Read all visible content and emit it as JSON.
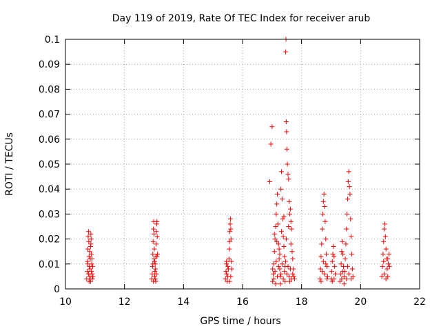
{
  "chart_data": {
    "type": "scatter",
    "title": "Day 119 of 2019, Rate Of TEC Index for receiver arub",
    "xlabel": "GPS time / hours",
    "ylabel": "ROTI / TECUs",
    "xlim": [
      10,
      22
    ],
    "ylim": [
      0,
      0.1
    ],
    "xticks": [
      10,
      12,
      14,
      16,
      18,
      20,
      22
    ],
    "xtick_labels": [
      "10",
      "12",
      "14",
      "16",
      "18",
      "20",
      "22"
    ],
    "yticks": [
      0,
      0.01,
      0.02,
      0.03,
      0.04,
      0.05,
      0.06,
      0.07,
      0.08,
      0.09,
      0.1
    ],
    "ytick_labels": [
      "0",
      "0.01",
      "0.02",
      "0.03",
      "0.04",
      "0.05",
      "0.06",
      "0.07",
      "0.08",
      "0.09",
      "0.1"
    ],
    "grid": true,
    "marker": "+",
    "color": "#ff0000",
    "series": [
      {
        "points": [
          [
            10.72,
            0.004
          ],
          [
            10.74,
            0.007
          ],
          [
            10.75,
            0.011
          ],
          [
            10.76,
            0.016
          ],
          [
            10.77,
            0.021
          ],
          [
            10.78,
            0.023
          ],
          [
            10.79,
            0.019
          ],
          [
            10.8,
            0.013
          ],
          [
            10.81,
            0.009
          ],
          [
            10.82,
            0.005
          ],
          [
            10.83,
            0.008
          ],
          [
            10.84,
            0.012
          ],
          [
            10.85,
            0.017
          ],
          [
            10.86,
            0.022
          ],
          [
            10.87,
            0.02
          ],
          [
            10.88,
            0.014
          ],
          [
            10.89,
            0.01
          ],
          [
            10.9,
            0.006
          ],
          [
            10.91,
            0.004
          ],
          [
            10.92,
            0.009
          ],
          [
            10.8,
            0.003
          ],
          [
            10.84,
            0.004
          ],
          [
            10.88,
            0.007
          ],
          [
            10.76,
            0.01
          ],
          [
            10.82,
            0.015
          ],
          [
            10.86,
            0.018
          ],
          [
            10.9,
            0.012
          ],
          [
            10.78,
            0.006
          ],
          [
            10.85,
            0.003
          ],
          [
            10.93,
            0.005
          ],
          [
            12.92,
            0.004
          ],
          [
            12.94,
            0.006
          ],
          [
            12.95,
            0.009
          ],
          [
            12.96,
            0.014
          ],
          [
            12.97,
            0.019
          ],
          [
            12.98,
            0.024
          ],
          [
            12.99,
            0.027
          ],
          [
            13.0,
            0.022
          ],
          [
            13.01,
            0.016
          ],
          [
            13.02,
            0.011
          ],
          [
            13.03,
            0.007
          ],
          [
            13.04,
            0.004
          ],
          [
            13.05,
            0.008
          ],
          [
            13.06,
            0.013
          ],
          [
            13.07,
            0.018
          ],
          [
            13.08,
            0.023
          ],
          [
            13.09,
            0.026
          ],
          [
            13.1,
            0.027
          ],
          [
            13.11,
            0.021
          ],
          [
            13.12,
            0.014
          ],
          [
            13.1,
            0.013
          ],
          [
            12.98,
            0.003
          ],
          [
            13.02,
            0.005
          ],
          [
            13.06,
            0.003
          ],
          [
            13.08,
            0.006
          ],
          [
            12.96,
            0.01
          ],
          [
            13.04,
            0.01
          ],
          [
            13.0,
            0.012
          ],
          [
            15.42,
            0.004
          ],
          [
            15.44,
            0.007
          ],
          [
            15.45,
            0.01
          ],
          [
            15.46,
            0.006
          ],
          [
            15.48,
            0.003
          ],
          [
            15.5,
            0.005
          ],
          [
            15.52,
            0.008
          ],
          [
            15.54,
            0.012
          ],
          [
            15.55,
            0.016
          ],
          [
            15.56,
            0.019
          ],
          [
            15.57,
            0.023
          ],
          [
            15.58,
            0.026
          ],
          [
            15.59,
            0.028
          ],
          [
            15.6,
            0.024
          ],
          [
            15.61,
            0.02
          ],
          [
            15.62,
            0.011
          ],
          [
            15.63,
            0.008
          ],
          [
            15.6,
            0.005
          ],
          [
            15.56,
            0.003
          ],
          [
            15.5,
            0.009
          ],
          [
            15.46,
            0.011
          ],
          [
            16.92,
            0.043
          ],
          [
            16.96,
            0.058
          ],
          [
            17.0,
            0.065
          ],
          [
            17.02,
            0.003
          ],
          [
            17.04,
            0.006
          ],
          [
            17.06,
            0.01
          ],
          [
            17.08,
            0.015
          ],
          [
            17.1,
            0.02
          ],
          [
            17.12,
            0.025
          ],
          [
            17.14,
            0.03
          ],
          [
            17.16,
            0.034
          ],
          [
            17.18,
            0.038
          ],
          [
            17.2,
            0.026
          ],
          [
            17.22,
            0.018
          ],
          [
            17.24,
            0.012
          ],
          [
            17.26,
            0.008
          ],
          [
            17.28,
            0.005
          ],
          [
            17.3,
            0.04
          ],
          [
            17.32,
            0.047
          ],
          [
            17.34,
            0.036
          ],
          [
            17.36,
            0.028
          ],
          [
            17.38,
            0.021
          ],
          [
            17.4,
            0.017
          ],
          [
            17.42,
            0.013
          ],
          [
            17.44,
            0.009
          ],
          [
            17.46,
            0.095
          ],
          [
            17.47,
            0.1
          ],
          [
            17.48,
            0.067
          ],
          [
            17.49,
            0.063
          ],
          [
            17.5,
            0.056
          ],
          [
            17.52,
            0.05
          ],
          [
            17.54,
            0.046
          ],
          [
            17.56,
            0.044
          ],
          [
            17.58,
            0.035
          ],
          [
            17.6,
            0.03
          ],
          [
            17.62,
            0.032
          ],
          [
            17.64,
            0.027
          ],
          [
            17.66,
            0.024
          ],
          [
            17.68,
            0.015
          ],
          [
            17.7,
            0.012
          ],
          [
            17.72,
            0.008
          ],
          [
            17.74,
            0.005
          ],
          [
            17.76,
            0.004
          ],
          [
            17.02,
            0.008
          ],
          [
            17.06,
            0.004
          ],
          [
            17.1,
            0.007
          ],
          [
            17.14,
            0.011
          ],
          [
            17.18,
            0.005
          ],
          [
            17.22,
            0.009
          ],
          [
            17.26,
            0.014
          ],
          [
            17.3,
            0.006
          ],
          [
            17.34,
            0.01
          ],
          [
            17.38,
            0.004
          ],
          [
            17.42,
            0.007
          ],
          [
            17.46,
            0.011
          ],
          [
            17.5,
            0.006
          ],
          [
            17.54,
            0.009
          ],
          [
            17.58,
            0.005
          ],
          [
            17.62,
            0.008
          ],
          [
            17.66,
            0.004
          ],
          [
            17.7,
            0.006
          ],
          [
            17.08,
            0.022
          ],
          [
            17.16,
            0.019
          ],
          [
            17.24,
            0.016
          ],
          [
            17.32,
            0.023
          ],
          [
            17.4,
            0.029
          ],
          [
            17.48,
            0.02
          ],
          [
            17.56,
            0.025
          ],
          [
            17.64,
            0.018
          ],
          [
            17.12,
            0.002
          ],
          [
            17.28,
            0.002
          ],
          [
            17.44,
            0.003
          ],
          [
            17.6,
            0.003
          ],
          [
            18.62,
            0.004
          ],
          [
            18.64,
            0.008
          ],
          [
            18.66,
            0.013
          ],
          [
            18.68,
            0.018
          ],
          [
            18.7,
            0.024
          ],
          [
            18.72,
            0.03
          ],
          [
            18.74,
            0.035
          ],
          [
            18.76,
            0.038
          ],
          [
            18.78,
            0.033
          ],
          [
            18.8,
            0.027
          ],
          [
            18.82,
            0.02
          ],
          [
            18.84,
            0.014
          ],
          [
            18.86,
            0.009
          ],
          [
            18.88,
            0.005
          ],
          [
            18.66,
            0.003
          ],
          [
            18.7,
            0.007
          ],
          [
            18.74,
            0.011
          ],
          [
            18.78,
            0.006
          ],
          [
            18.82,
            0.01
          ],
          [
            18.86,
            0.004
          ],
          [
            19.0,
            0.004
          ],
          [
            19.02,
            0.007
          ],
          [
            19.04,
            0.011
          ],
          [
            19.06,
            0.014
          ],
          [
            19.08,
            0.017
          ],
          [
            19.1,
            0.013
          ],
          [
            19.12,
            0.009
          ],
          [
            19.14,
            0.006
          ],
          [
            19.04,
            0.003
          ],
          [
            19.1,
            0.004
          ],
          [
            19.3,
            0.003
          ],
          [
            19.32,
            0.006
          ],
          [
            19.34,
            0.01
          ],
          [
            19.36,
            0.015
          ],
          [
            19.38,
            0.019
          ],
          [
            19.4,
            0.014
          ],
          [
            19.42,
            0.009
          ],
          [
            19.44,
            0.005
          ],
          [
            19.46,
            0.007
          ],
          [
            19.48,
            0.012
          ],
          [
            19.5,
            0.018
          ],
          [
            19.52,
            0.024
          ],
          [
            19.54,
            0.03
          ],
          [
            19.56,
            0.036
          ],
          [
            19.58,
            0.043
          ],
          [
            19.6,
            0.047
          ],
          [
            19.62,
            0.041
          ],
          [
            19.64,
            0.038
          ],
          [
            19.66,
            0.028
          ],
          [
            19.68,
            0.021
          ],
          [
            19.7,
            0.014
          ],
          [
            19.72,
            0.008
          ],
          [
            19.74,
            0.005
          ],
          [
            19.36,
            0.004
          ],
          [
            19.44,
            0.002
          ],
          [
            19.52,
            0.004
          ],
          [
            19.6,
            0.006
          ],
          [
            19.68,
            0.004
          ],
          [
            19.4,
            0.007
          ],
          [
            19.56,
            0.009
          ],
          [
            20.72,
            0.005
          ],
          [
            20.74,
            0.009
          ],
          [
            20.76,
            0.014
          ],
          [
            20.78,
            0.019
          ],
          [
            20.8,
            0.024
          ],
          [
            20.82,
            0.026
          ],
          [
            20.84,
            0.021
          ],
          [
            20.86,
            0.016
          ],
          [
            20.88,
            0.012
          ],
          [
            20.9,
            0.008
          ],
          [
            20.92,
            0.005
          ],
          [
            20.94,
            0.01
          ],
          [
            20.96,
            0.014
          ],
          [
            20.98,
            0.009
          ],
          [
            20.8,
            0.006
          ],
          [
            20.86,
            0.004
          ],
          [
            20.92,
            0.012
          ],
          [
            20.78,
            0.011
          ]
        ]
      }
    ]
  }
}
